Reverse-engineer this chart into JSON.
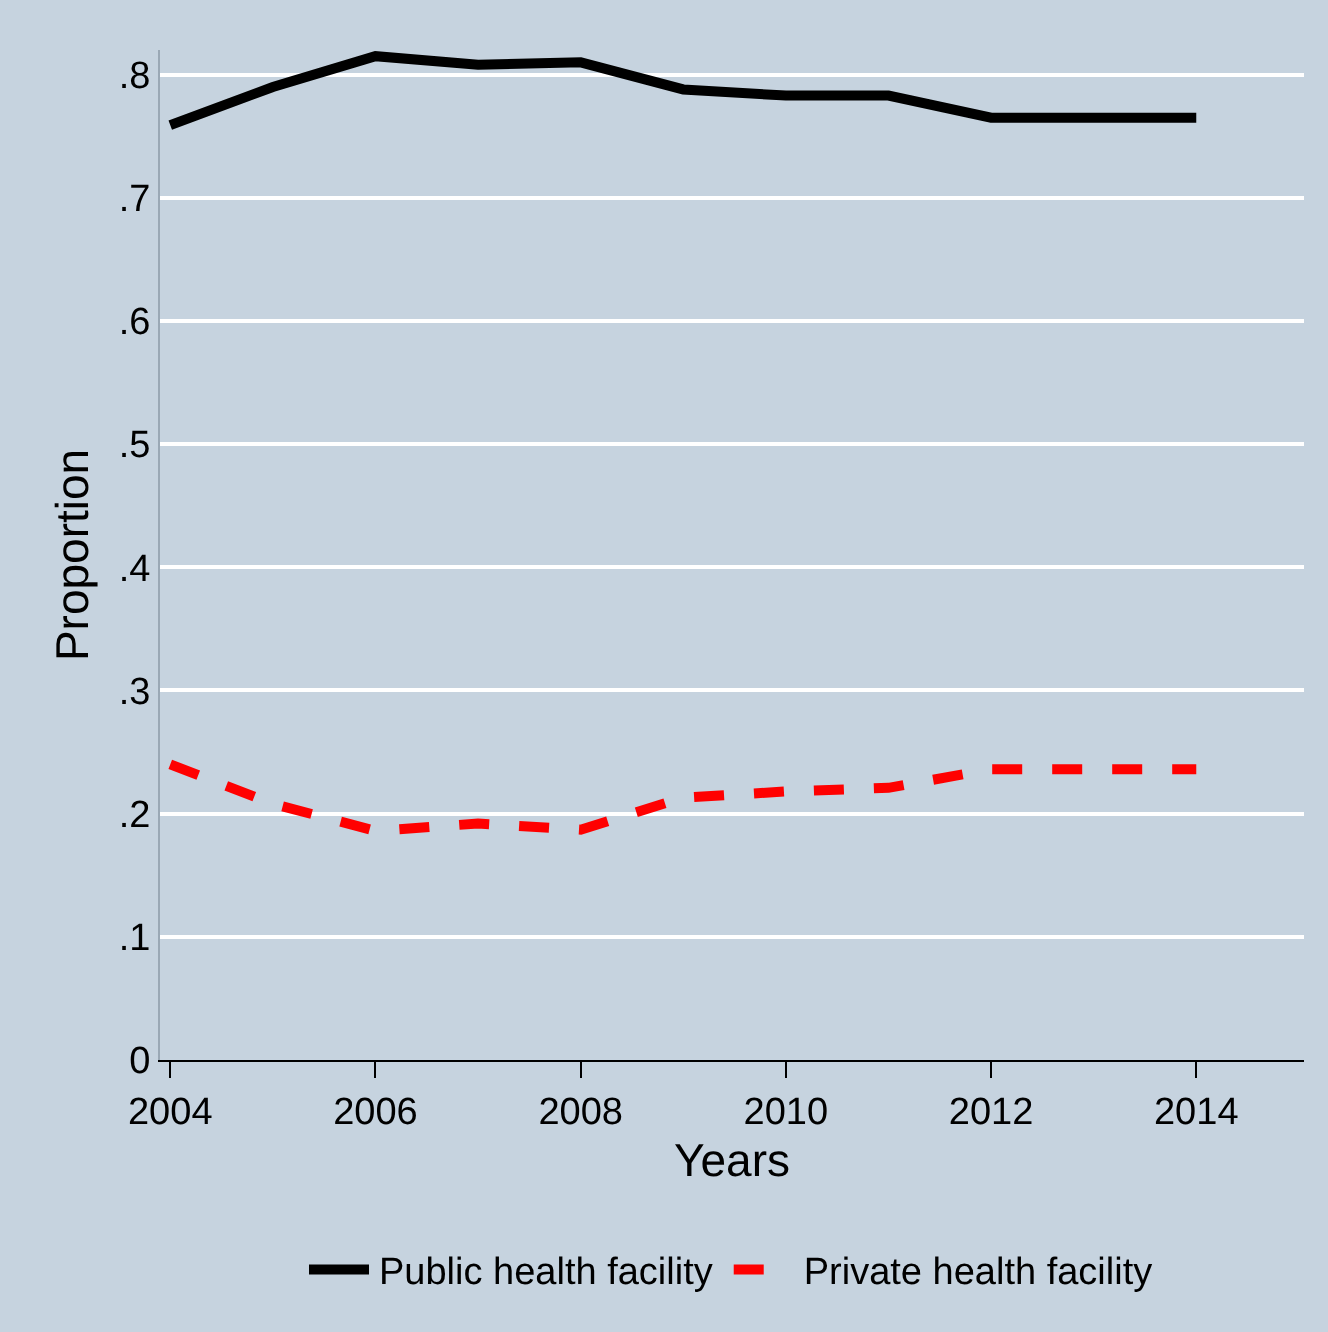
{
  "chart_data": {
    "type": "line",
    "xlabel": "Years",
    "ylabel": "Proportion",
    "x": [
      2004,
      2005,
      2006,
      2007,
      2008,
      2009,
      2010,
      2011,
      2012,
      2013,
      2014
    ],
    "series": [
      {
        "name": "Public health facility",
        "color": "#000000",
        "line_style": "solid",
        "values": [
          0.759,
          0.79,
          0.815,
          0.808,
          0.81,
          0.788,
          0.783,
          0.783,
          0.765,
          0.765,
          0.765
        ]
      },
      {
        "name": "Private health facility",
        "color": "#ff0000",
        "line_style": "dashed",
        "values": [
          0.24,
          0.208,
          0.186,
          0.192,
          0.187,
          0.213,
          0.218,
          0.221,
          0.236,
          0.236,
          0.236
        ]
      }
    ],
    "xlim": [
      2003.9,
      2015.05
    ],
    "xticks": [
      2004,
      2006,
      2008,
      2010,
      2012,
      2014
    ],
    "ylim": [
      0,
      0.82
    ],
    "yticks": [
      {
        "value": 0,
        "label": "0"
      },
      {
        "value": 0.1,
        "label": ".1"
      },
      {
        "value": 0.2,
        "label": ".2"
      },
      {
        "value": 0.3,
        "label": ".3"
      },
      {
        "value": 0.4,
        "label": ".4"
      },
      {
        "value": 0.5,
        "label": ".5"
      },
      {
        "value": 0.6,
        "label": ".6"
      },
      {
        "value": 0.7,
        "label": ".7"
      },
      {
        "value": 0.8,
        "label": ".8"
      }
    ],
    "grid": "y",
    "legend": "bottom"
  }
}
